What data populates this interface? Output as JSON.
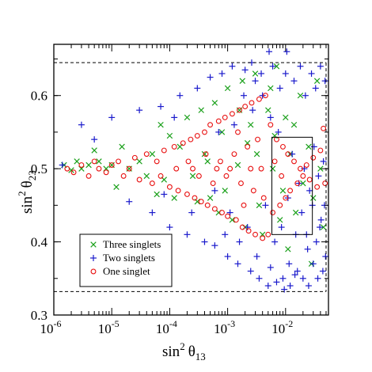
{
  "chart_data": {
    "type": "scatter",
    "title": "",
    "xlabel": {
      "base": "sin",
      "sup": "2",
      "sym": "θ",
      "sub": "13"
    },
    "ylabel": {
      "base": "sin",
      "sup": "2",
      "sym": "θ",
      "sub": "23"
    },
    "x_scale": "log",
    "xlim": [
      1e-06,
      0.055
    ],
    "ylim": [
      0.3,
      0.67
    ],
    "x_ticks": [
      {
        "value": 1e-06,
        "base": "10",
        "exp": "-6"
      },
      {
        "value": 1e-05,
        "base": "10",
        "exp": "-5"
      },
      {
        "value": 0.0001,
        "base": "10",
        "exp": "-4"
      },
      {
        "value": 0.001,
        "base": "10",
        "exp": "-3"
      },
      {
        "value": 0.01,
        "base": "10",
        "exp": "-2"
      }
    ],
    "y_ticks": [
      {
        "value": 0.3,
        "label": "0.3"
      },
      {
        "value": 0.4,
        "label": "0.4"
      },
      {
        "value": 0.5,
        "label": "0.5"
      },
      {
        "value": 0.6,
        "label": "0.6"
      }
    ],
    "grid": false,
    "legend_placement": "bottom-left",
    "outer_region": {
      "x": [
        1e-06,
        0.05
      ],
      "y": [
        0.332,
        0.645
      ]
    },
    "inner_region": {
      "x": [
        0.0058,
        0.029
      ],
      "y": [
        0.41,
        0.543
      ]
    },
    "series": [
      {
        "name": "Three singlets",
        "marker": "x",
        "color": "#1aa01a",
        "points": [
          [
            1.5e-06,
            0.505
          ],
          [
            2e-06,
            0.498
          ],
          [
            2.5e-06,
            0.51
          ],
          [
            3e-06,
            0.5
          ],
          [
            4e-06,
            0.505
          ],
          [
            5e-06,
            0.525
          ],
          [
            6e-06,
            0.51
          ],
          [
            8e-06,
            0.5
          ],
          [
            1e-05,
            0.505
          ],
          [
            1.2e-05,
            0.475
          ],
          [
            1.5e-05,
            0.53
          ],
          [
            2e-05,
            0.5
          ],
          [
            3e-05,
            0.51
          ],
          [
            4e-05,
            0.49
          ],
          [
            5e-05,
            0.52
          ],
          [
            6e-05,
            0.465
          ],
          [
            7e-05,
            0.56
          ],
          [
            8e-05,
            0.485
          ],
          [
            0.0001,
            0.545
          ],
          [
            0.00012,
            0.46
          ],
          [
            0.00015,
            0.53
          ],
          [
            0.0002,
            0.57
          ],
          [
            0.00025,
            0.49
          ],
          [
            0.0003,
            0.455
          ],
          [
            0.00035,
            0.58
          ],
          [
            0.0004,
            0.52
          ],
          [
            0.0005,
            0.46
          ],
          [
            0.0006,
            0.59
          ],
          [
            0.0007,
            0.44
          ],
          [
            0.0008,
            0.55
          ],
          [
            0.001,
            0.61
          ],
          [
            0.0012,
            0.43
          ],
          [
            0.0015,
            0.505
          ],
          [
            0.0018,
            0.62
          ],
          [
            0.002,
            0.42
          ],
          [
            0.0025,
            0.56
          ],
          [
            0.003,
            0.63
          ],
          [
            0.0035,
            0.45
          ],
          [
            0.004,
            0.41
          ],
          [
            0.005,
            0.58
          ],
          [
            0.006,
            0.5
          ],
          [
            0.007,
            0.64
          ],
          [
            0.008,
            0.43
          ],
          [
            0.009,
            0.47
          ],
          [
            0.01,
            0.57
          ],
          [
            0.012,
            0.52
          ],
          [
            0.015,
            0.44
          ],
          [
            0.018,
            0.6
          ],
          [
            0.02,
            0.48
          ],
          [
            0.025,
            0.53
          ],
          [
            0.03,
            0.46
          ],
          [
            0.035,
            0.62
          ],
          [
            0.04,
            0.5
          ],
          [
            0.045,
            0.42
          ],
          [
            0.0022,
            0.535
          ],
          [
            0.0009,
            0.47
          ],
          [
            0.00045,
            0.51
          ],
          [
            0.0016,
            0.58
          ],
          [
            0.0065,
            0.545
          ],
          [
            0.011,
            0.39
          ],
          [
            0.028,
            0.37
          ],
          [
            0.0032,
            0.52
          ],
          [
            0.0055,
            0.61
          ],
          [
            0.014,
            0.56
          ]
        ]
      },
      {
        "name": "Two singlets",
        "marker": "+",
        "color": "#1a1acc",
        "points": [
          [
            1.4e-06,
            0.505
          ],
          [
            3e-06,
            0.56
          ],
          [
            5e-06,
            0.54
          ],
          [
            1e-05,
            0.57
          ],
          [
            2e-05,
            0.455
          ],
          [
            3e-05,
            0.58
          ],
          [
            5e-05,
            0.44
          ],
          [
            7e-05,
            0.585
          ],
          [
            0.0001,
            0.42
          ],
          [
            0.00015,
            0.6
          ],
          [
            0.0002,
            0.41
          ],
          [
            0.0003,
            0.61
          ],
          [
            0.0004,
            0.4
          ],
          [
            0.0005,
            0.625
          ],
          [
            0.0006,
            0.395
          ],
          [
            0.0008,
            0.63
          ],
          [
            0.001,
            0.38
          ],
          [
            0.0012,
            0.64
          ],
          [
            0.0015,
            0.37
          ],
          [
            0.002,
            0.635
          ],
          [
            0.0025,
            0.36
          ],
          [
            0.003,
            0.62
          ],
          [
            0.0035,
            0.35
          ],
          [
            0.004,
            0.6
          ],
          [
            0.005,
            0.34
          ],
          [
            0.006,
            0.64
          ],
          [
            0.007,
            0.345
          ],
          [
            0.008,
            0.61
          ],
          [
            0.009,
            0.35
          ],
          [
            0.01,
            0.63
          ],
          [
            0.012,
            0.34
          ],
          [
            0.014,
            0.62
          ],
          [
            0.016,
            0.36
          ],
          [
            0.018,
            0.64
          ],
          [
            0.02,
            0.35
          ],
          [
            0.022,
            0.6
          ],
          [
            0.025,
            0.34
          ],
          [
            0.028,
            0.63
          ],
          [
            0.03,
            0.37
          ],
          [
            0.033,
            0.61
          ],
          [
            0.036,
            0.35
          ],
          [
            0.04,
            0.64
          ],
          [
            0.044,
            0.36
          ],
          [
            0.048,
            0.62
          ],
          [
            0.0011,
            0.44
          ],
          [
            0.0013,
            0.56
          ],
          [
            0.0022,
            0.42
          ],
          [
            0.0027,
            0.58
          ],
          [
            0.0045,
            0.45
          ],
          [
            0.0055,
            0.57
          ],
          [
            0.0065,
            0.4
          ],
          [
            0.0075,
            0.55
          ],
          [
            0.0085,
            0.42
          ],
          [
            0.011,
            0.46
          ],
          [
            0.013,
            0.52
          ],
          [
            0.015,
            0.41
          ],
          [
            0.017,
            0.48
          ],
          [
            0.019,
            0.44
          ],
          [
            0.021,
            0.5
          ],
          [
            0.024,
            0.39
          ],
          [
            0.026,
            0.47
          ],
          [
            0.029,
            0.45
          ],
          [
            0.031,
            0.53
          ],
          [
            0.034,
            0.4
          ],
          [
            0.037,
            0.49
          ],
          [
            0.041,
            0.43
          ],
          [
            0.045,
            0.51
          ],
          [
            0.049,
            0.38
          ],
          [
            0.0016,
            0.4
          ],
          [
            0.0019,
            0.6
          ],
          [
            0.0032,
            0.38
          ],
          [
            0.0038,
            0.63
          ],
          [
            0.0006,
            0.47
          ],
          [
            0.0007,
            0.55
          ],
          [
            0.0009,
            0.41
          ],
          [
            0.00024,
            0.44
          ],
          [
            0.00012,
            0.57
          ],
          [
            8e-05,
            0.465
          ],
          [
            0.0055,
            0.365
          ],
          [
            0.0095,
            0.335
          ],
          [
            0.0115,
            0.37
          ],
          [
            0.0145,
            0.355
          ],
          [
            0.023,
            0.41
          ],
          [
            0.039,
            0.42
          ],
          [
            0.047,
            0.45
          ],
          [
            0.0026,
            0.645
          ],
          [
            0.0052,
            0.66
          ],
          [
            0.0105,
            0.66
          ]
        ]
      },
      {
        "name": "One singlet",
        "marker": "o",
        "color": "#e81010",
        "points": [
          [
            1.7e-06,
            0.5
          ],
          [
            2.2e-06,
            0.495
          ],
          [
            3e-06,
            0.505
          ],
          [
            4e-06,
            0.49
          ],
          [
            5e-06,
            0.51
          ],
          [
            6e-06,
            0.5
          ],
          [
            8e-06,
            0.495
          ],
          [
            1e-05,
            0.505
          ],
          [
            1.3e-05,
            0.51
          ],
          [
            1.6e-05,
            0.49
          ],
          [
            2e-05,
            0.5
          ],
          [
            2.5e-05,
            0.515
          ],
          [
            3e-05,
            0.485
          ],
          [
            4e-05,
            0.52
          ],
          [
            5e-05,
            0.48
          ],
          [
            6e-05,
            0.51
          ],
          [
            7e-05,
            0.49
          ],
          [
            8e-05,
            0.525
          ],
          [
            0.0001,
            0.475
          ],
          [
            0.00012,
            0.53
          ],
          [
            0.00014,
            0.47
          ],
          [
            0.00017,
            0.535
          ],
          [
            0.0002,
            0.465
          ],
          [
            0.00023,
            0.54
          ],
          [
            0.00027,
            0.46
          ],
          [
            0.0003,
            0.545
          ],
          [
            0.00035,
            0.455
          ],
          [
            0.0004,
            0.55
          ],
          [
            0.00045,
            0.45
          ],
          [
            0.0005,
            0.56
          ],
          [
            0.0006,
            0.445
          ],
          [
            0.0007,
            0.565
          ],
          [
            0.0008,
            0.44
          ],
          [
            0.0009,
            0.57
          ],
          [
            0.001,
            0.435
          ],
          [
            0.0012,
            0.575
          ],
          [
            0.0014,
            0.43
          ],
          [
            0.0016,
            0.58
          ],
          [
            0.0018,
            0.42
          ],
          [
            0.002,
            0.585
          ],
          [
            0.0023,
            0.415
          ],
          [
            0.0026,
            0.59
          ],
          [
            0.003,
            0.41
          ],
          [
            0.0035,
            0.595
          ],
          [
            0.004,
            0.405
          ],
          [
            0.0045,
            0.6
          ],
          [
            0.005,
            0.41
          ],
          [
            0.0055,
            0.56
          ],
          [
            0.006,
            0.44
          ],
          [
            0.007,
            0.54
          ],
          [
            0.008,
            0.45
          ],
          [
            0.009,
            0.53
          ],
          [
            0.01,
            0.46
          ],
          [
            0.011,
            0.52
          ],
          [
            0.012,
            0.47
          ],
          [
            0.014,
            0.51
          ],
          [
            0.016,
            0.48
          ],
          [
            0.018,
            0.5
          ],
          [
            0.02,
            0.49
          ],
          [
            0.023,
            0.505
          ],
          [
            0.026,
            0.485
          ],
          [
            0.03,
            0.515
          ],
          [
            0.035,
            0.475
          ],
          [
            0.04,
            0.525
          ],
          [
            0.045,
            0.555
          ],
          [
            0.048,
            0.48
          ],
          [
            0.00013,
            0.5
          ],
          [
            0.00021,
            0.51
          ],
          [
            0.00032,
            0.49
          ],
          [
            0.00042,
            0.52
          ],
          [
            0.00056,
            0.48
          ],
          [
            0.00075,
            0.51
          ],
          [
            0.00095,
            0.49
          ],
          [
            0.0013,
            0.52
          ],
          [
            0.0017,
            0.48
          ],
          [
            0.0022,
            0.53
          ],
          [
            0.0028,
            0.47
          ],
          [
            0.0033,
            0.54
          ],
          [
            0.0042,
            0.46
          ],
          [
            0.0065,
            0.51
          ],
          [
            0.0085,
            0.49
          ],
          [
            0.00025,
            0.5
          ],
          [
            0.00065,
            0.5
          ],
          [
            0.0011,
            0.5
          ],
          [
            0.0025,
            0.5
          ],
          [
            0.0038,
            0.5
          ],
          [
            0.0015,
            0.55
          ],
          [
            0.0019,
            0.45
          ]
        ]
      }
    ]
  }
}
